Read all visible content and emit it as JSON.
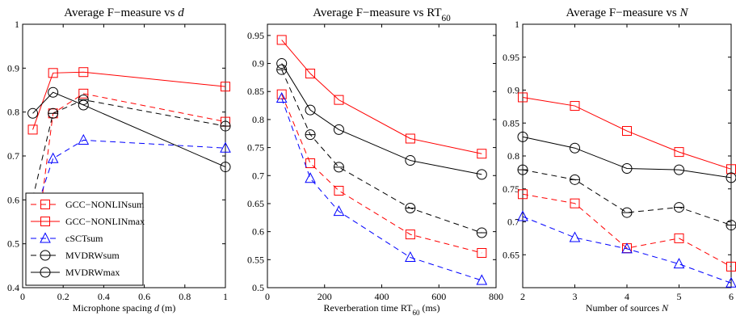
{
  "chart_data": [
    {
      "type": "line",
      "title": "Average F−measure vs d",
      "title_parts": [
        "Average F−measure vs ",
        "d"
      ],
      "xlabel": "Microphone spacing d (m)",
      "xlabel_parts": [
        "Microphone spacing ",
        "d",
        " (m)"
      ],
      "ylabel": "",
      "xlim": [
        0,
        1
      ],
      "ylim": [
        0.4,
        1
      ],
      "xticks": [
        0,
        0.2,
        0.4,
        0.6,
        0.8,
        1
      ],
      "xtick_labels": [
        "0",
        "0.2",
        "0.4",
        "0.6",
        "0.8",
        "1"
      ],
      "yticks": [
        0.4,
        0.5,
        0.6,
        0.7,
        0.8,
        0.9,
        1
      ],
      "ytick_labels": [
        "0.4",
        "0.5",
        "0.6",
        "0.7",
        "0.8",
        "0.9",
        "1"
      ],
      "grid": false,
      "legend": "bottom-left",
      "x": [
        0.05,
        0.15,
        0.3,
        1
      ],
      "series": [
        {
          "name": "GCC−NONLINsum",
          "values": [
            0.44,
            0.797,
            0.842,
            0.778
          ]
        },
        {
          "name": "GCC−NONLINmax",
          "values": [
            0.76,
            0.889,
            0.891,
            0.858
          ]
        },
        {
          "name": "cSCTsum",
          "values": [
            0.556,
            0.694,
            0.736,
            0.718
          ]
        },
        {
          "name": "MVDRWsum",
          "values": [
            0.604,
            0.797,
            0.828,
            0.768
          ]
        },
        {
          "name": "MVDRWmax",
          "values": [
            0.797,
            0.845,
            0.816,
            0.675
          ]
        }
      ]
    },
    {
      "type": "line",
      "title": "Average F−measure vs RT60",
      "title_parts": [
        "Average F−measure vs RT",
        "60"
      ],
      "xlabel": "Reverberation time RT60 (ms)",
      "xlabel_parts": [
        "Reverberation time RT",
        "60",
        " (ms)"
      ],
      "ylabel": "",
      "xlim": [
        0,
        800
      ],
      "ylim": [
        0.5,
        0.97
      ],
      "xticks": [
        0,
        200,
        400,
        600,
        800
      ],
      "xtick_labels": [
        "0",
        "200",
        "400",
        "600",
        "800"
      ],
      "yticks": [
        0.5,
        0.55,
        0.6,
        0.65,
        0.7,
        0.75,
        0.8,
        0.85,
        0.9,
        0.95
      ],
      "ytick_labels": [
        "0.5",
        "0.55",
        "0.6",
        "0.65",
        "0.7",
        "0.75",
        "0.8",
        "0.85",
        "0.9",
        "0.95"
      ],
      "grid": false,
      "legend": "",
      "x": [
        50,
        150,
        250,
        500,
        750
      ],
      "series": [
        {
          "name": "GCC−NONLINsum",
          "values": [
            0.845,
            0.722,
            0.673,
            0.595,
            0.562
          ]
        },
        {
          "name": "GCC−NONLINmax",
          "values": [
            0.942,
            0.882,
            0.835,
            0.766,
            0.739
          ]
        },
        {
          "name": "cSCTsum",
          "values": [
            0.838,
            0.695,
            0.636,
            0.554,
            0.513
          ]
        },
        {
          "name": "MVDRWsum",
          "values": [
            0.889,
            0.773,
            0.715,
            0.642,
            0.598
          ]
        },
        {
          "name": "MVDRWmax",
          "values": [
            0.9,
            0.817,
            0.782,
            0.727,
            0.702
          ]
        }
      ]
    },
    {
      "type": "line",
      "title": "Average F−measure vs N",
      "title_parts": [
        "Average F−measure vs ",
        "N"
      ],
      "xlabel": "Number of sources N",
      "xlabel_parts": [
        "Number of sources ",
        "N",
        ""
      ],
      "ylabel": "",
      "xlim": [
        2,
        6
      ],
      "ylim": [
        0.6,
        1
      ],
      "xticks": [
        2,
        3,
        4,
        5,
        6
      ],
      "xtick_labels": [
        "2",
        "3",
        "4",
        "5",
        "6"
      ],
      "yticks": [
        0.65,
        0.7,
        0.75,
        0.8,
        0.85,
        0.9,
        0.95,
        1
      ],
      "ytick_labels": [
        "0.65",
        "0.7",
        "0.75",
        "0.8",
        "0.85",
        "0.9",
        "0.95",
        "1"
      ],
      "grid": false,
      "legend": "",
      "x": [
        2,
        3,
        4,
        5,
        6
      ],
      "series": [
        {
          "name": "GCC−NONLINsum",
          "values": [
            0.742,
            0.728,
            0.66,
            0.675,
            0.632
          ]
        },
        {
          "name": "GCC−NONLINmax",
          "values": [
            0.889,
            0.876,
            0.838,
            0.806,
            0.78
          ]
        },
        {
          "name": "cSCTsum",
          "values": [
            0.708,
            0.676,
            0.659,
            0.636,
            0.607
          ]
        },
        {
          "name": "MVDRWsum",
          "values": [
            0.779,
            0.764,
            0.714,
            0.722,
            0.695
          ]
        },
        {
          "name": "MVDRWmax",
          "values": [
            0.829,
            0.812,
            0.781,
            0.779,
            0.767
          ]
        }
      ]
    }
  ],
  "series_styles": [
    {
      "color": "#ff0000",
      "dash": "7,5",
      "marker": "square"
    },
    {
      "color": "#ff0000",
      "dash": "",
      "marker": "square"
    },
    {
      "color": "#0000ff",
      "dash": "7,5",
      "marker": "triangle"
    },
    {
      "color": "#000000",
      "dash": "7,5",
      "marker": "circle-minus"
    },
    {
      "color": "#000000",
      "dash": "",
      "marker": "circle"
    }
  ]
}
